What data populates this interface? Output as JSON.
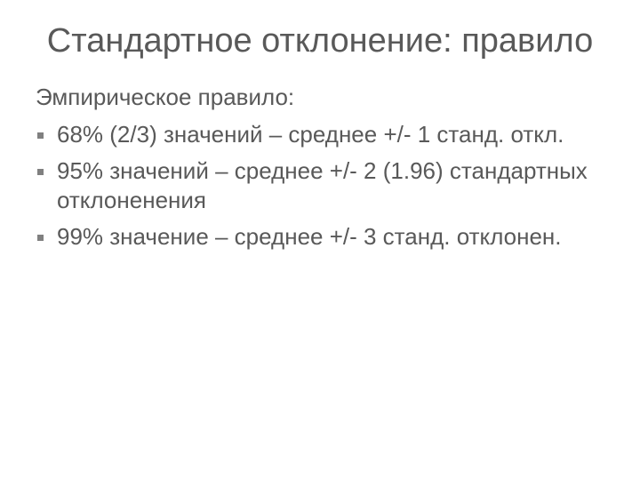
{
  "slide": {
    "title": "Стандартное отклонение: правило",
    "subheading": "Эмпирическое правило:",
    "bullets": [
      "68% (2/3) значений – среднее +/- 1 станд. откл.",
      "95% значений – среднее +/- 2 (1.96) стандартных отклоненения",
      "99% значение – среднее +/- 3 станд. отклонен."
    ]
  },
  "colors": {
    "background": "#ffffff",
    "text": "#595959",
    "bullet": "#808080"
  },
  "typography": {
    "title_fontsize": 38,
    "body_fontsize": 26,
    "font_family": "Arial"
  }
}
